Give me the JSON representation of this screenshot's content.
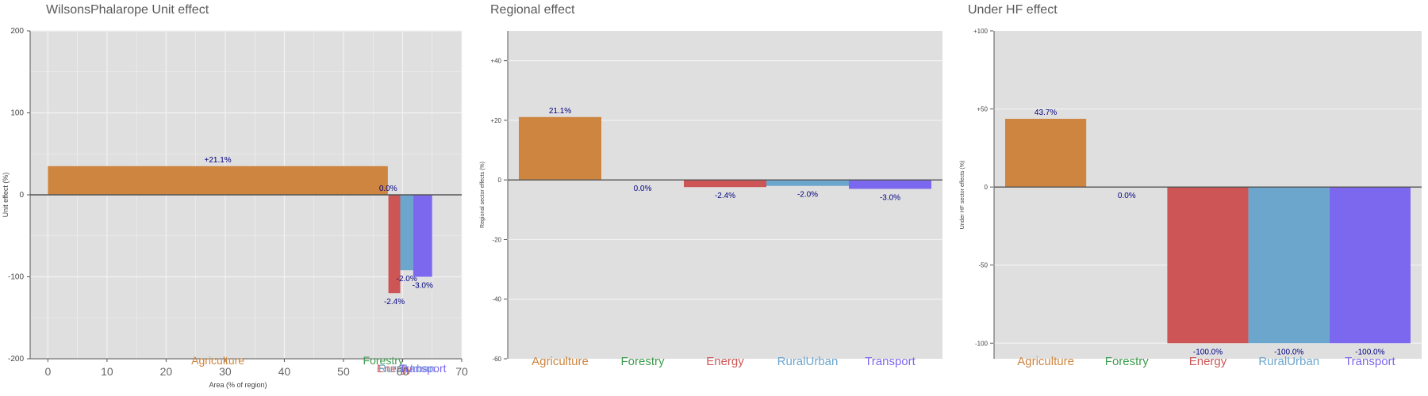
{
  "colors": {
    "panel_bg": "#dfdfdf",
    "grid": "#f2f2f2",
    "zero_line": "#555555",
    "bar_label": "#000080",
    "tick": "#444444"
  },
  "sectors": [
    {
      "name": "Agriculture",
      "color": "#cd853f"
    },
    {
      "name": "Forestry",
      "color": "#3c9b4c"
    },
    {
      "name": "Energy",
      "color": "#cd5555"
    },
    {
      "name": "RuralUrban",
      "color": "#6ca6cd"
    },
    {
      "name": "Transport",
      "color": "#7b68ee"
    }
  ],
  "chart_data": [
    {
      "id": "unit",
      "type": "bar",
      "title": "WilsonsPhalarope Unit effect",
      "xlabel": "Area (% of region)",
      "ylabel": "Unit effect (%)",
      "xlim": [
        -3,
        70
      ],
      "ylim": [
        -200,
        200
      ],
      "xticks": [
        0,
        10,
        20,
        30,
        40,
        50,
        60,
        70
      ],
      "yticks": [
        -200,
        -100,
        0,
        100,
        200
      ],
      "grid": true,
      "bars": [
        {
          "sector": "Agriculture",
          "x0": 0.0,
          "x1": 57.5,
          "value": 35,
          "label": "+21.1%"
        },
        {
          "sector": "Forestry",
          "x0": 57.5,
          "x1": 57.6,
          "value": 0,
          "label": "0.0%"
        },
        {
          "sector": "Energy",
          "x0": 57.6,
          "x1": 59.6,
          "value": -120,
          "label": "-2.4%"
        },
        {
          "sector": "RuralUrban",
          "x0": 59.6,
          "x1": 61.8,
          "value": -92,
          "label": "-2.0%"
        },
        {
          "sector": "Transport",
          "x0": 61.8,
          "x1": 65.0,
          "value": -100,
          "label": "-3.0%"
        }
      ]
    },
    {
      "id": "regional",
      "type": "bar",
      "title": "Regional effect",
      "ylabel": "Regional sector effects (%)",
      "ylim": [
        -60,
        50
      ],
      "yticks": [
        -60,
        -40,
        -20,
        0,
        20,
        40
      ],
      "ytick_labels": [
        "-60",
        "-40",
        "-20",
        "0",
        "+20",
        "+40"
      ],
      "grid": true,
      "categories": [
        "Agriculture",
        "Forestry",
        "Energy",
        "RuralUrban",
        "Transport"
      ],
      "values": [
        21.1,
        0.0,
        -2.4,
        -2.0,
        -3.0
      ],
      "labels": [
        "21.1%",
        "0.0%",
        "-2.4%",
        "-2.0%",
        "-3.0%"
      ]
    },
    {
      "id": "underhf",
      "type": "bar",
      "title": "Under HF effect",
      "ylabel": "Under HF sector effects (%)",
      "ylim": [
        -110,
        100
      ],
      "yticks": [
        -100,
        -50,
        0,
        50,
        100
      ],
      "ytick_labels": [
        "-100",
        "-50",
        "0",
        "+50",
        "+100"
      ],
      "grid": true,
      "categories": [
        "Agriculture",
        "Forestry",
        "Energy",
        "RuralUrban",
        "Transport"
      ],
      "values": [
        43.7,
        0.0,
        -100.0,
        -100.0,
        -100.0
      ],
      "labels": [
        "43.7%",
        "0.0%",
        "-100.0%",
        "-100.0%",
        "-100.0%"
      ]
    }
  ]
}
